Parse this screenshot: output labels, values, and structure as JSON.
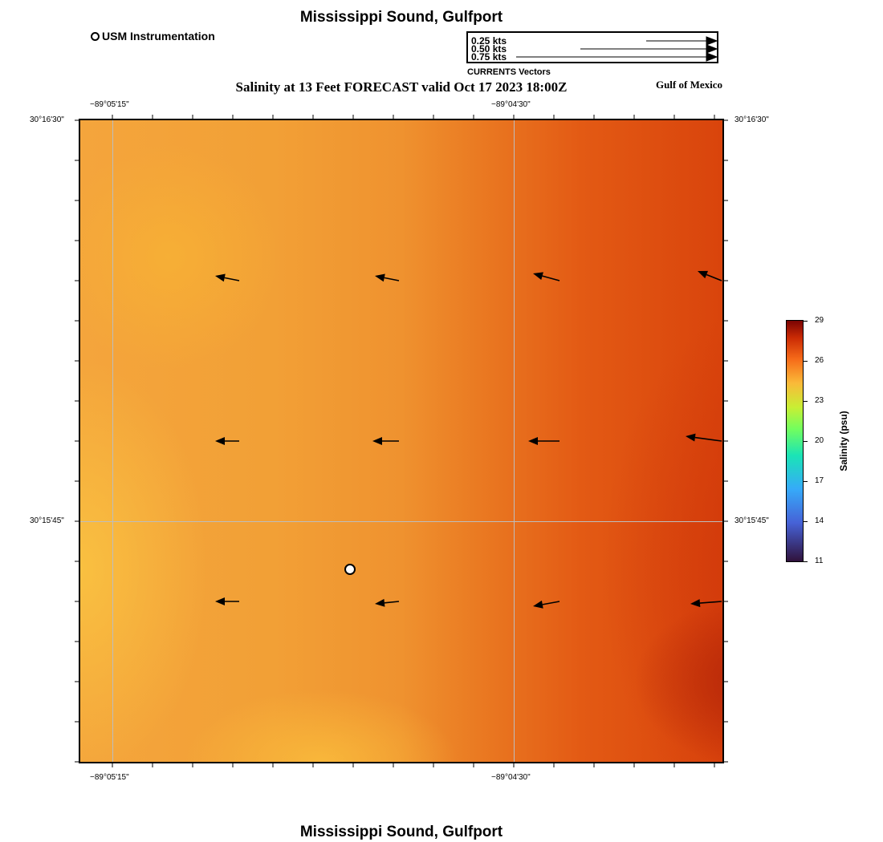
{
  "header": {
    "title": "Mississippi Sound, Gulfport",
    "subtitle": "Salinity at 13 Feet FORECAST valid Oct 17 2023 18:00Z",
    "region": "Gulf of Mexico",
    "footer_title": "Mississippi Sound, Gulfport"
  },
  "legend": {
    "usm_label": "USM Instrumentation",
    "vector_keys": [
      "0.25 kts",
      "0.50 kts",
      "0.75 kts"
    ],
    "vector_caption": "CURRENTS Vectors"
  },
  "axes": {
    "lon_labels": [
      "−89°05'15\"",
      "−89°04'30\""
    ],
    "lat_labels": [
      "30°16'30\"",
      "30°15'45\""
    ]
  },
  "colorbar": {
    "title": "Salinity (psu)",
    "ticks": [
      29,
      26,
      23,
      20,
      17,
      14,
      11
    ],
    "range": [
      11,
      29
    ]
  },
  "colors": {
    "field_low": "#f8b93e",
    "field_mid": "#ef922f",
    "field_high": "#b82a08"
  },
  "current_vectors": [
    {
      "row": 1,
      "col": 1,
      "u_kts": -0.1,
      "v_kts": 0.02
    },
    {
      "row": 1,
      "col": 2,
      "u_kts": -0.1,
      "v_kts": 0.02
    },
    {
      "row": 1,
      "col": 3,
      "u_kts": -0.11,
      "v_kts": 0.03
    },
    {
      "row": 1,
      "col": 4,
      "u_kts": -0.1,
      "v_kts": 0.04
    },
    {
      "row": 2,
      "col": 1,
      "u_kts": -0.1,
      "v_kts": 0.0
    },
    {
      "row": 2,
      "col": 2,
      "u_kts": -0.11,
      "v_kts": 0.0
    },
    {
      "row": 2,
      "col": 3,
      "u_kts": -0.13,
      "v_kts": 0.0
    },
    {
      "row": 2,
      "col": 4,
      "u_kts": -0.15,
      "v_kts": 0.02
    },
    {
      "row": 3,
      "col": 1,
      "u_kts": -0.1,
      "v_kts": 0.0
    },
    {
      "row": 3,
      "col": 2,
      "u_kts": -0.1,
      "v_kts": -0.01
    },
    {
      "row": 3,
      "col": 3,
      "u_kts": -0.11,
      "v_kts": -0.02
    },
    {
      "row": 3,
      "col": 4,
      "u_kts": -0.13,
      "v_kts": -0.01
    }
  ]
}
